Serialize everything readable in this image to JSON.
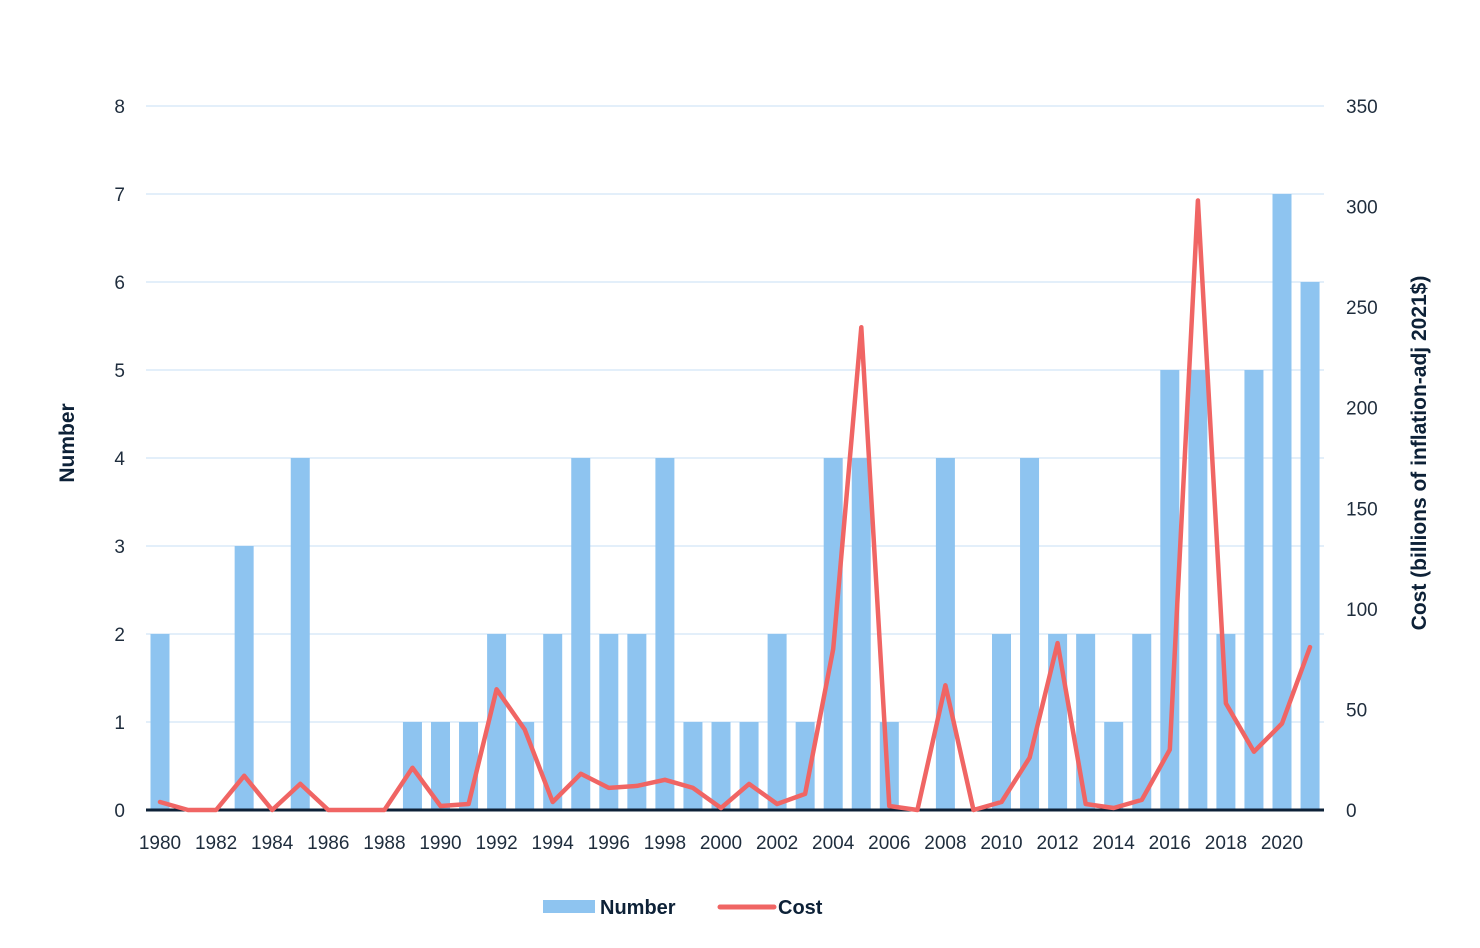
{
  "chart_data": {
    "type": "bar",
    "years": [
      1980,
      1981,
      1982,
      1983,
      1984,
      1985,
      1986,
      1987,
      1988,
      1989,
      1990,
      1991,
      1992,
      1993,
      1994,
      1995,
      1996,
      1997,
      1998,
      1999,
      2000,
      2001,
      2002,
      2003,
      2004,
      2005,
      2006,
      2007,
      2008,
      2009,
      2010,
      2011,
      2012,
      2013,
      2014,
      2015,
      2016,
      2017,
      2018,
      2019,
      2020,
      2021
    ],
    "x_tick_labels": [
      "1980",
      "1982",
      "1984",
      "1986",
      "1988",
      "1990",
      "1992",
      "1994",
      "1996",
      "1998",
      "2000",
      "2002",
      "2004",
      "2006",
      "2008",
      "2010",
      "2012",
      "2014",
      "2016",
      "2018",
      "2020"
    ],
    "series": [
      {
        "name": "Number",
        "type": "bar",
        "axis": "left",
        "color": "#8ec4f0",
        "values": [
          2,
          0,
          0,
          3,
          0,
          4,
          0,
          0,
          0,
          1,
          1,
          1,
          2,
          1,
          2,
          4,
          2,
          2,
          4,
          1,
          1,
          1,
          2,
          1,
          4,
          4,
          1,
          0,
          4,
          0,
          2,
          4,
          2,
          2,
          1,
          2,
          5,
          5,
          2,
          5,
          7,
          6
        ]
      },
      {
        "name": "Cost",
        "type": "line",
        "axis": "right",
        "color": "#f06564",
        "values": [
          4,
          0,
          0,
          17,
          0,
          13,
          0,
          0,
          0,
          21,
          2,
          3,
          60,
          40,
          4,
          18,
          11,
          12,
          15,
          11,
          1,
          13,
          3,
          8,
          80,
          240,
          2,
          0,
          62,
          0,
          4,
          26,
          83,
          3,
          1,
          5,
          30,
          303,
          53,
          29,
          43,
          81
        ]
      }
    ],
    "left_axis": {
      "label": "Number",
      "range": [
        0,
        8
      ],
      "ticks": [
        "0",
        "1",
        "2",
        "3",
        "4",
        "5",
        "6",
        "7",
        "8"
      ]
    },
    "right_axis": {
      "label": "Cost (billions of inflation-adj 2021$)",
      "range": [
        0,
        350
      ],
      "ticks": [
        "0",
        "50",
        "100",
        "150",
        "200",
        "250",
        "300",
        "350"
      ]
    },
    "grid": true,
    "legend_position": "bottom-center"
  },
  "legend": {
    "number_label": "Number",
    "cost_label": "Cost"
  }
}
